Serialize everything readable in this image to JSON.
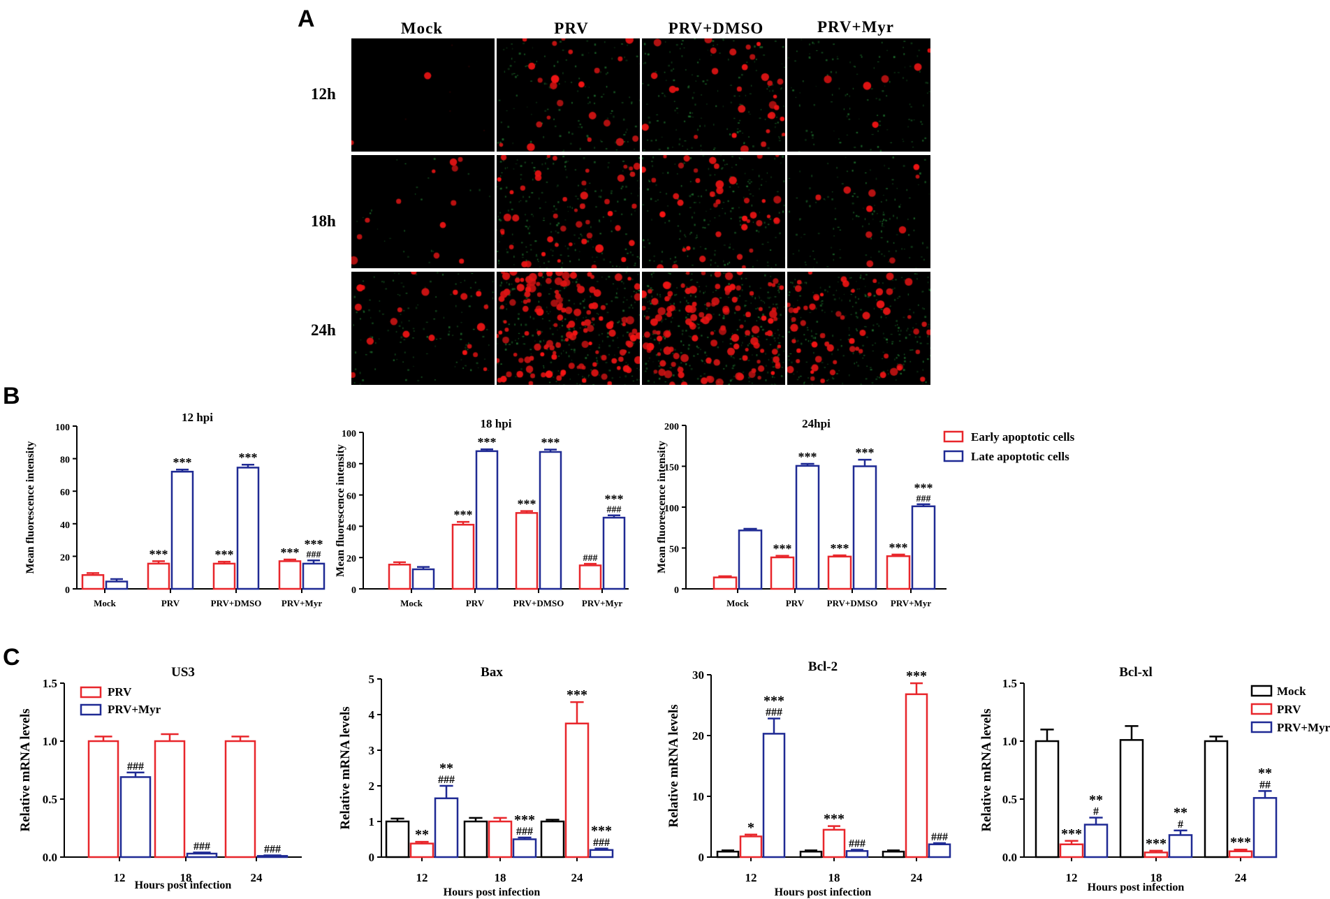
{
  "panel_labels": {
    "a": "A",
    "b": "B",
    "c": "C"
  },
  "micrograph_grid": {
    "columns": [
      "Mock",
      "PRV",
      "PRV+DMSO",
      "PRV+Myr"
    ],
    "rows": [
      "12h",
      "18h",
      "24h"
    ],
    "red_cell_counts": [
      [
        2,
        22,
        30,
        6
      ],
      [
        12,
        45,
        40,
        10
      ],
      [
        20,
        140,
        120,
        60
      ]
    ],
    "green_cell_counts": [
      [
        0,
        45,
        55,
        40
      ],
      [
        8,
        70,
        65,
        45
      ],
      [
        45,
        90,
        110,
        90
      ]
    ]
  },
  "chart_data": [
    {
      "id": "B1",
      "type": "bar",
      "title": "12 hpi",
      "ylabel": "Mean fluorescence intensity",
      "xlabel": "",
      "categories": [
        "Mock",
        "PRV",
        "PRV+DMSO",
        "PRV+Myr"
      ],
      "ylim": [
        0,
        100
      ],
      "yticks": [
        0,
        20,
        40,
        60,
        80,
        100
      ],
      "series": [
        {
          "name": "Early apoptotic cells",
          "color": "#e8262b",
          "values": [
            8.5,
            15.5,
            15.5,
            17.0
          ],
          "errors": [
            1.2,
            1.5,
            1.2,
            1.0
          ],
          "labels": [
            "",
            "***",
            "***",
            "***"
          ]
        },
        {
          "name": "Late apoptotic cells",
          "color": "#1f2a94",
          "values": [
            4.5,
            72.0,
            74.5,
            15.5
          ],
          "errors": [
            1.5,
            1.3,
            1.8,
            2.0
          ],
          "labels": [
            "",
            "***",
            "***",
            "***\n###"
          ]
        }
      ]
    },
    {
      "id": "B2",
      "type": "bar",
      "title": "18 hpi",
      "ylabel": "Mean fluorescence intensity",
      "xlabel": "",
      "categories": [
        "Mock",
        "PRV",
        "PRV+DMSO",
        "PRV+Myr"
      ],
      "ylim": [
        0,
        100
      ],
      "yticks": [
        0,
        20,
        40,
        60,
        80,
        100
      ],
      "series": [
        {
          "name": "Early apoptotic cells",
          "color": "#e8262b",
          "values": [
            15.5,
            41.0,
            48.5,
            15.0
          ],
          "errors": [
            1.5,
            1.8,
            1.2,
            1.0
          ],
          "labels": [
            "",
            "***",
            "***",
            "###"
          ]
        },
        {
          "name": "Late apoptotic cells",
          "color": "#1f2a94",
          "values": [
            12.5,
            88.0,
            87.5,
            45.5
          ],
          "errors": [
            1.5,
            1.2,
            1.5,
            1.5
          ],
          "labels": [
            "",
            "***",
            "***",
            "***\n###"
          ]
        }
      ]
    },
    {
      "id": "B3",
      "type": "bar",
      "title": "24hpi",
      "ylabel": "Mean fluorescence intensity",
      "xlabel": "",
      "categories": [
        "Mock",
        "PRV",
        "PRV+DMSO",
        "PRV+Myr"
      ],
      "ylim": [
        0,
        200
      ],
      "yticks": [
        0,
        50,
        100,
        150,
        200
      ],
      "series": [
        {
          "name": "Early apoptotic cells",
          "color": "#e8262b",
          "values": [
            14.0,
            38.5,
            39.5,
            40.0
          ],
          "errors": [
            1.5,
            2.0,
            1.5,
            2.0
          ],
          "labels": [
            "",
            "***",
            "***",
            "***"
          ]
        },
        {
          "name": "Late apoptotic cells",
          "color": "#1f2a94",
          "values": [
            71.5,
            150.5,
            150.0,
            101.0
          ],
          "errors": [
            2.0,
            2.5,
            8.0,
            2.5
          ],
          "labels": [
            "",
            "***",
            "***",
            "***\n###"
          ]
        }
      ]
    },
    {
      "id": "C1",
      "type": "bar",
      "title": "US3",
      "ylabel": "Relative mRNA levels",
      "xlabel": "Hours post infection",
      "categories": [
        "12",
        "18",
        "24"
      ],
      "ylim": [
        0,
        1.5
      ],
      "yticks": [
        "0.0",
        "0.5",
        "1.0",
        "1.5"
      ],
      "series": [
        {
          "name": "PRV",
          "color": "#e8262b",
          "values": [
            1.0,
            1.0,
            1.0
          ],
          "errors": [
            0.04,
            0.06,
            0.04
          ],
          "labels": [
            "",
            "",
            ""
          ]
        },
        {
          "name": "PRV+Myr",
          "color": "#1f2a94",
          "values": [
            0.69,
            0.03,
            0.01
          ],
          "errors": [
            0.04,
            0.01,
            0.005
          ],
          "labels": [
            "###",
            "###",
            "###"
          ]
        }
      ]
    },
    {
      "id": "C2",
      "type": "bar",
      "title": "Bax",
      "ylabel": "Relative mRNA levels",
      "xlabel": "Hours post infection",
      "categories": [
        "12",
        "18",
        "24"
      ],
      "ylim": [
        0,
        5
      ],
      "yticks": [
        "0",
        "1",
        "2",
        "3",
        "4",
        "5"
      ],
      "series": [
        {
          "name": "Mock",
          "color": "#000000",
          "values": [
            1.0,
            1.0,
            1.0
          ],
          "errors": [
            0.08,
            0.1,
            0.05
          ],
          "labels": [
            "",
            "",
            ""
          ]
        },
        {
          "name": "PRV",
          "color": "#e8262b",
          "values": [
            0.38,
            1.0,
            3.75
          ],
          "errors": [
            0.05,
            0.1,
            0.6
          ],
          "labels": [
            "**",
            "",
            "***"
          ]
        },
        {
          "name": "PRV+Myr",
          "color": "#1f2a94",
          "values": [
            1.65,
            0.5,
            0.2
          ],
          "errors": [
            0.35,
            0.05,
            0.04
          ],
          "labels": [
            "**\n###",
            "***\n###",
            "***\n###"
          ]
        }
      ]
    },
    {
      "id": "C3",
      "type": "bar",
      "title": "Bcl-2",
      "ylabel": "Relative mRNA levels",
      "xlabel": "Hours post infection",
      "categories": [
        "12",
        "18",
        "24"
      ],
      "ylim": [
        0,
        30
      ],
      "yticks": [
        "0",
        "10",
        "20",
        "30"
      ],
      "series": [
        {
          "name": "Mock",
          "color": "#000000",
          "values": [
            0.9,
            0.9,
            0.9
          ],
          "errors": [
            0.2,
            0.2,
            0.2
          ],
          "labels": [
            "",
            "",
            ""
          ]
        },
        {
          "name": "PRV",
          "color": "#e8262b",
          "values": [
            3.4,
            4.5,
            26.8
          ],
          "errors": [
            0.3,
            0.6,
            1.8
          ],
          "labels": [
            "*",
            "***",
            "***"
          ]
        },
        {
          "name": "PRV+Myr",
          "color": "#1f2a94",
          "values": [
            20.3,
            1.0,
            2.1
          ],
          "errors": [
            2.5,
            0.2,
            0.2
          ],
          "labels": [
            "***\n###",
            "###",
            "###"
          ]
        }
      ]
    },
    {
      "id": "C4",
      "type": "bar",
      "title": "Bcl-xl",
      "ylabel": "Relative mRNA levels",
      "xlabel": "Hours post infection",
      "categories": [
        "12",
        "18",
        "24"
      ],
      "ylim": [
        0,
        1.5
      ],
      "yticks": [
        "0.0",
        "0.5",
        "1.0",
        "1.5"
      ],
      "series": [
        {
          "name": "Mock",
          "color": "#000000",
          "values": [
            1.0,
            1.01,
            1.0
          ],
          "errors": [
            0.1,
            0.12,
            0.04
          ],
          "labels": [
            "",
            "",
            ""
          ]
        },
        {
          "name": "PRV",
          "color": "#e8262b",
          "values": [
            0.11,
            0.04,
            0.05
          ],
          "errors": [
            0.03,
            0.015,
            0.015
          ],
          "labels": [
            "***",
            "***",
            "***"
          ]
        },
        {
          "name": "PRV+Myr",
          "color": "#1f2a94",
          "values": [
            0.28,
            0.19,
            0.51
          ],
          "errors": [
            0.06,
            0.04,
            0.06
          ],
          "labels": [
            "**\n#",
            "**\n#",
            "**\n##"
          ]
        }
      ]
    }
  ]
}
